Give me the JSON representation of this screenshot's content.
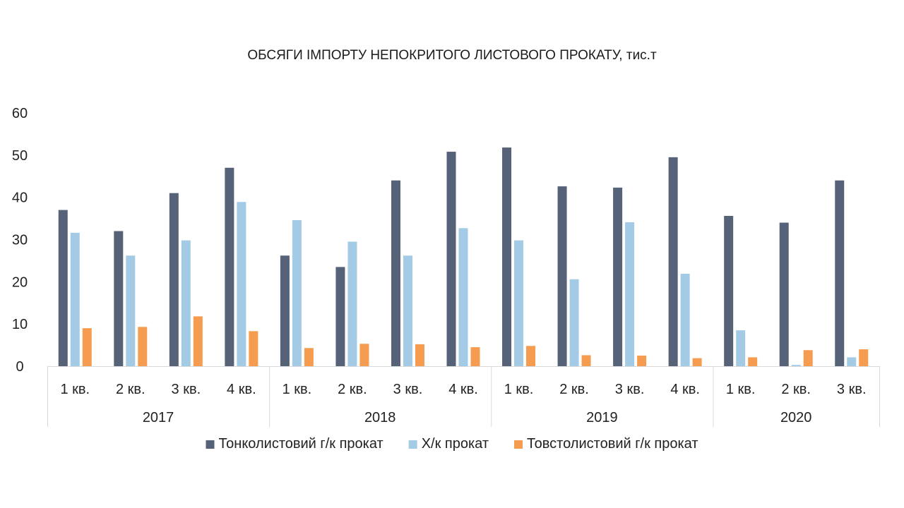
{
  "chart_data": {
    "type": "bar",
    "title": "ОБСЯГИ ІМПОРТУ НЕПОКРИТОГО ЛИСТОВОГО ПРОКАТУ, тис.т",
    "xlabel": "",
    "ylabel": "",
    "ylim": [
      0,
      60
    ],
    "yticks": [
      "0",
      "10",
      "20",
      "30",
      "40",
      "50",
      "60"
    ],
    "grid": false,
    "legend_position": "bottom",
    "groups": [
      {
        "year": "2017",
        "quarters": [
          "1 кв.",
          "2 кв.",
          "3 кв.",
          "4 кв."
        ]
      },
      {
        "year": "2018",
        "quarters": [
          "1 кв.",
          "2 кв.",
          "3 кв.",
          "4 кв."
        ]
      },
      {
        "year": "2019",
        "quarters": [
          "1 кв.",
          "2 кв.",
          "3 кв.",
          "4 кв."
        ]
      },
      {
        "year": "2020",
        "quarters": [
          "1 кв.",
          "2 кв.",
          "3 кв."
        ]
      }
    ],
    "series": [
      {
        "name": "Тонколистовий г/к прокат",
        "color": "#566278",
        "values": [
          37,
          32,
          41,
          47,
          26.2,
          23.5,
          44,
          50.8,
          51.8,
          42.6,
          42.3,
          49.5,
          35.6,
          34,
          44
        ]
      },
      {
        "name": "Х/к прокат",
        "color": "#a4cbe6",
        "values": [
          31.6,
          26.2,
          29.8,
          38.9,
          34.6,
          29.5,
          26.2,
          32.7,
          29.8,
          20.6,
          34.1,
          21.9,
          8.5,
          0.3,
          2.1
        ]
      },
      {
        "name": "Товстолистовий г/к прокат",
        "color": "#f59c50",
        "values": [
          9,
          9.3,
          11.8,
          8.3,
          4.3,
          5.3,
          5.2,
          4.5,
          4.8,
          2.6,
          2.5,
          1.9,
          2.1,
          3.8,
          4
        ]
      }
    ]
  }
}
